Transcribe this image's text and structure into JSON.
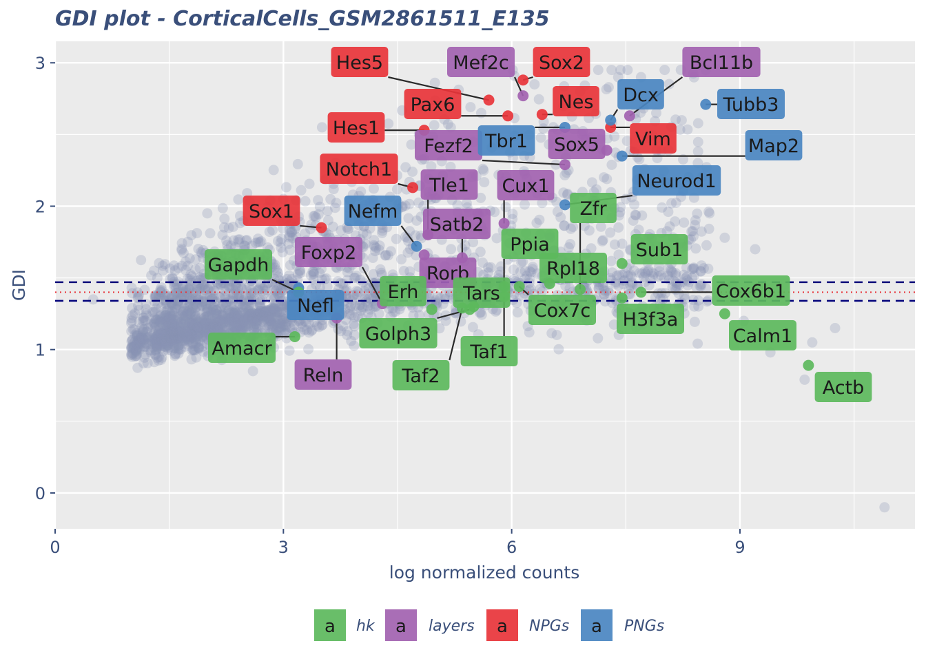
{
  "chart_data": {
    "type": "scatter",
    "title": "GDI plot - CorticalCells_GSM2861511_E135",
    "xlabel": "log normalized counts",
    "ylabel": "GDI",
    "xlim": [
      0,
      11.3
    ],
    "ylim": [
      -0.25,
      3.15
    ],
    "x_ticks": [
      0,
      3,
      6,
      9
    ],
    "y_ticks": [
      0,
      1,
      2,
      3
    ],
    "grid": true,
    "legend_position": "bottom",
    "reference_lines": {
      "mean_gdi": 1.4,
      "upper_bound": 1.47,
      "lower_bound": 1.34
    },
    "colors": {
      "panel": "#ebebeb",
      "grid": "#ffffff",
      "background_points": "#8a95b5",
      "hk": "#5cb85c",
      "layers": "#a262b0",
      "NPGs": "#e8343a",
      "PNGs": "#4a86c1",
      "mean_line": "#e8343a",
      "bound_line": "#00007a"
    },
    "categories": [
      {
        "name": "hk",
        "color": "#5cb85c"
      },
      {
        "name": "layers",
        "color": "#a262b0"
      },
      {
        "name": "NPGs",
        "color": "#e8343a"
      },
      {
        "name": "PNGs",
        "color": "#4a86c1"
      }
    ],
    "legend_key_letter": "a",
    "outliers": [
      [
        8.55,
        2.95
      ],
      [
        7.9,
        2.65
      ],
      [
        9.2,
        1.7
      ],
      [
        10.25,
        1.15
      ],
      [
        9.95,
        1.05
      ],
      [
        9.4,
        0.98
      ],
      [
        9.85,
        0.79
      ],
      [
        10.9,
        -0.1
      ],
      [
        8.1,
        2.02
      ],
      [
        7.6,
        2.1
      ],
      [
        7.5,
        2.05
      ],
      [
        6.9,
        2.8
      ],
      [
        5.2,
        2.55
      ],
      [
        2.0,
        1.95
      ],
      [
        3.0,
        2.05
      ],
      [
        8.8,
        1.78
      ],
      [
        8.6,
        1.95
      ],
      [
        8.4,
        1.3
      ],
      [
        8.1,
        1.6
      ],
      [
        7.7,
        2.9
      ],
      [
        7.4,
        2.9
      ],
      [
        6.3,
        2.85
      ],
      [
        5.6,
        2.65
      ],
      [
        4.8,
        2.7
      ],
      [
        2.6,
        0.85
      ],
      [
        0.5,
        1.35
      ],
      [
        9.05,
        1.2
      ],
      [
        8.9,
        1.45
      ],
      [
        1.3,
        1.55
      ],
      [
        2.2,
        1.8
      ]
    ],
    "genes": [
      {
        "gene": "Hes5",
        "group": "NPGs",
        "x": 5.7,
        "y": 2.74
      },
      {
        "gene": "Sox2",
        "group": "NPGs",
        "x": 6.15,
        "y": 2.88
      },
      {
        "gene": "Pax6",
        "group": "NPGs",
        "x": 5.95,
        "y": 2.63
      },
      {
        "gene": "Nes",
        "group": "NPGs",
        "x": 6.4,
        "y": 2.64
      },
      {
        "gene": "Hes1",
        "group": "NPGs",
        "x": 4.85,
        "y": 2.53
      },
      {
        "gene": "Vim",
        "group": "NPGs",
        "x": 7.3,
        "y": 2.55
      },
      {
        "gene": "Notch1",
        "group": "NPGs",
        "x": 4.7,
        "y": 2.13
      },
      {
        "gene": "Sox1",
        "group": "NPGs",
        "x": 3.5,
        "y": 1.85
      },
      {
        "gene": "Mef2c",
        "group": "layers",
        "x": 6.15,
        "y": 2.77
      },
      {
        "gene": "Bcl11b",
        "group": "layers",
        "x": 7.55,
        "y": 2.63
      },
      {
        "gene": "Fezf2",
        "group": "layers",
        "x": 6.7,
        "y": 2.29
      },
      {
        "gene": "Sox5",
        "group": "layers",
        "x": 7.25,
        "y": 2.39
      },
      {
        "gene": "Tle1",
        "group": "layers",
        "x": 4.9,
        "y": 1.8
      },
      {
        "gene": "Cux1",
        "group": "layers",
        "x": 5.9,
        "y": 1.88
      },
      {
        "gene": "Satb2",
        "group": "layers",
        "x": 5.35,
        "y": 1.64
      },
      {
        "gene": "Rorb",
        "group": "layers",
        "x": 4.85,
        "y": 1.66
      },
      {
        "gene": "Foxp2",
        "group": "layers",
        "x": 4.3,
        "y": 1.32
      },
      {
        "gene": "Reln",
        "group": "layers",
        "x": 3.7,
        "y": 1.22
      },
      {
        "gene": "Dcx",
        "group": "PNGs",
        "x": 7.3,
        "y": 2.6
      },
      {
        "gene": "Tubb3",
        "group": "PNGs",
        "x": 8.55,
        "y": 2.71
      },
      {
        "gene": "Tbr1",
        "group": "PNGs",
        "x": 6.7,
        "y": 2.55
      },
      {
        "gene": "Map2",
        "group": "PNGs",
        "x": 7.45,
        "y": 2.35
      },
      {
        "gene": "Neurod1",
        "group": "PNGs",
        "x": 6.7,
        "y": 2.01
      },
      {
        "gene": "Nefm",
        "group": "PNGs",
        "x": 4.75,
        "y": 1.72
      },
      {
        "gene": "Nefl",
        "group": "PNGs",
        "x": 3.2,
        "y": 1.43
      },
      {
        "gene": "Gapdh",
        "group": "hk",
        "x": 3.2,
        "y": 1.4
      },
      {
        "gene": "Zfr",
        "group": "hk",
        "x": 6.9,
        "y": 1.42
      },
      {
        "gene": "Ppia",
        "group": "hk",
        "x": 5.9,
        "y": 1.44
      },
      {
        "gene": "Sub1",
        "group": "hk",
        "x": 7.45,
        "y": 1.6
      },
      {
        "gene": "Rpl18",
        "group": "hk",
        "x": 6.5,
        "y": 1.46
      },
      {
        "gene": "Erh",
        "group": "hk",
        "x": 4.95,
        "y": 1.28
      },
      {
        "gene": "Tars",
        "group": "hk",
        "x": 5.5,
        "y": 1.3
      },
      {
        "gene": "Cox7c",
        "group": "hk",
        "x": 6.1,
        "y": 1.44
      },
      {
        "gene": "Cox6b1",
        "group": "hk",
        "x": 7.7,
        "y": 1.4
      },
      {
        "gene": "H3f3a",
        "group": "hk",
        "x": 7.45,
        "y": 1.36
      },
      {
        "gene": "Golph3",
        "group": "hk",
        "x": 5.45,
        "y": 1.28
      },
      {
        "gene": "Amacr",
        "group": "hk",
        "x": 3.15,
        "y": 1.09
      },
      {
        "gene": "Taf2",
        "group": "hk",
        "x": 5.35,
        "y": 1.29
      },
      {
        "gene": "Taf1",
        "group": "hk",
        "x": 5.9,
        "y": 1.37
      },
      {
        "gene": "Calm1",
        "group": "hk",
        "x": 8.8,
        "y": 1.25
      },
      {
        "gene": "Actb",
        "group": "hk",
        "x": 9.9,
        "y": 0.89
      }
    ]
  }
}
